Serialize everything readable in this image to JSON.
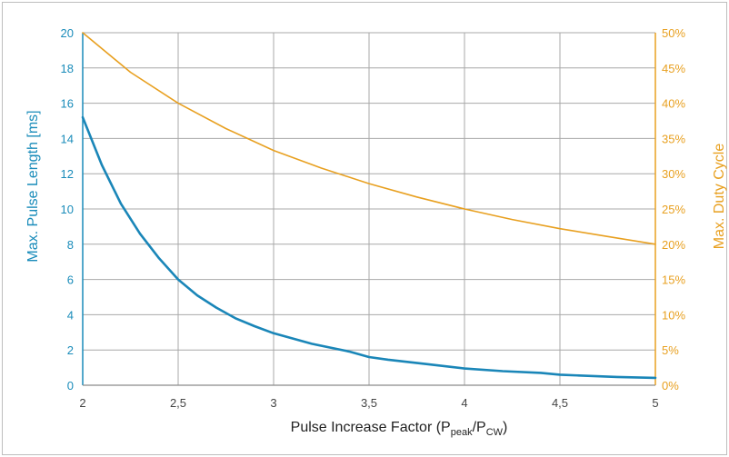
{
  "chart_data": {
    "type": "line",
    "xlabel": "Pulse Increase Factor (Ppeak/PCW)",
    "xlabel_parts": {
      "main": "Pulse Increase Factor (P",
      "sub1": "peak",
      "mid": "/P",
      "sub2": "CW",
      "end": ")"
    },
    "ylabel_left": "Max. Pulse Length [ms]",
    "ylabel_right": "Max. Duty Cycle",
    "xlim": [
      2,
      5
    ],
    "ylim_left": [
      0,
      20
    ],
    "ylim_right": [
      0,
      50
    ],
    "x_ticks": [
      "2",
      "2,5",
      "3",
      "3,5",
      "4",
      "4,5",
      "5"
    ],
    "x_tick_values": [
      2,
      2.5,
      3,
      3.5,
      4,
      4.5,
      5
    ],
    "y_left_ticks": [
      "0",
      "2",
      "4",
      "6",
      "8",
      "10",
      "12",
      "14",
      "16",
      "18",
      "20"
    ],
    "y_left_tick_values": [
      0,
      2,
      4,
      6,
      8,
      10,
      12,
      14,
      16,
      18,
      20
    ],
    "y_right_ticks": [
      "0%",
      "5%",
      "10%",
      "15%",
      "20%",
      "25%",
      "30%",
      "35%",
      "40%",
      "45%",
      "50%"
    ],
    "y_right_tick_values": [
      0,
      5,
      10,
      15,
      20,
      25,
      30,
      35,
      40,
      45,
      50
    ],
    "grid": true,
    "series": [
      {
        "axis": "left",
        "color": "#1a86b8",
        "x": [
          2,
          2.1,
          2.2,
          2.3,
          2.4,
          2.5,
          2.6,
          2.7,
          2.8,
          2.9,
          3.0,
          3.2,
          3.4,
          3.5,
          3.6,
          3.8,
          4.0,
          4.2,
          4.4,
          4.5,
          4.6,
          4.8,
          5.0
        ],
        "values": [
          15.2,
          12.5,
          10.3,
          8.6,
          7.2,
          6.0,
          5.1,
          4.4,
          3.8,
          3.35,
          2.95,
          2.35,
          1.9,
          1.6,
          1.45,
          1.2,
          0.95,
          0.8,
          0.7,
          0.6,
          0.55,
          0.47,
          0.42
        ]
      },
      {
        "axis": "right",
        "color": "#e8a020",
        "x": [
          2,
          2.25,
          2.5,
          2.75,
          3.0,
          3.25,
          3.5,
          3.75,
          4.0,
          4.25,
          4.5,
          4.75,
          5.0
        ],
        "values": [
          50,
          44.4,
          40,
          36.4,
          33.3,
          30.8,
          28.6,
          26.7,
          25,
          23.5,
          22.2,
          21.1,
          20
        ]
      }
    ]
  }
}
